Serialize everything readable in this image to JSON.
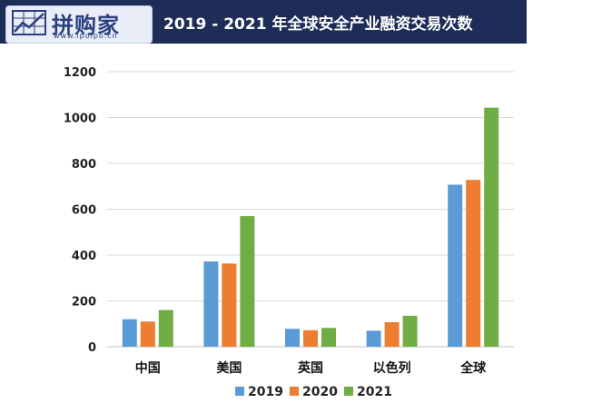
{
  "brand": {
    "logo_text": "拼购家",
    "url": "www.ipoipo.cn"
  },
  "chart_data": {
    "type": "bar",
    "title": "2019 - 2021 年全球安全产业融资交易次数",
    "categories": [
      "中国",
      "美国",
      "英国",
      "以色列",
      "全球"
    ],
    "series": [
      {
        "name": "2019",
        "color": "#5b9bd5",
        "values": [
          120,
          372,
          78,
          70,
          707
        ]
      },
      {
        "name": "2020",
        "color": "#ed7d31",
        "values": [
          110,
          363,
          72,
          107,
          728
        ]
      },
      {
        "name": "2021",
        "color": "#70ad47",
        "values": [
          160,
          570,
          82,
          135,
          1043
        ]
      }
    ],
    "ylim": [
      0,
      1200
    ],
    "yticks": [
      0,
      200,
      400,
      600,
      800,
      1000,
      1200
    ],
    "grid": true,
    "legend_position": "bottom"
  }
}
